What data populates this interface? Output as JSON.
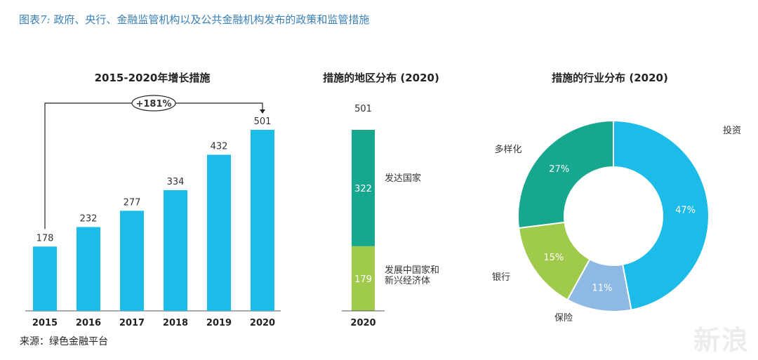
{
  "figure": {
    "title_prefix": "图表",
    "title_number": "7:",
    "title_text": " 政府、央行、金融监管机构以及公共金融机构发布的政策和监管措施",
    "source": "来源：绿色金融平台",
    "watermark": "新浪"
  },
  "colors": {
    "cyan": "#1cbbe8",
    "teal": "#17a68e",
    "green": "#9fca4c",
    "lightblue": "#8db9e2"
  },
  "chart_data": [
    {
      "type": "bar",
      "title": "2015-2020年增长措施",
      "categories": [
        "2015",
        "2016",
        "2017",
        "2018",
        "2019",
        "2020"
      ],
      "values": [
        178,
        232,
        277,
        334,
        432,
        501
      ],
      "ylim": [
        0,
        501
      ],
      "annotation": "+181%"
    },
    {
      "type": "bar",
      "title": "措施的地区分布 (2020)",
      "category": "2020",
      "total": 501,
      "segments": [
        {
          "name": "发展中国家和新兴经济体",
          "label_line1": "发展中国家和",
          "label_line2": "新兴经济体",
          "value": 179,
          "color": "#9fca4c"
        },
        {
          "name": "发达国家",
          "label_line1": "发达国家",
          "label_line2": "",
          "value": 322,
          "color": "#17a68e"
        }
      ]
    },
    {
      "type": "pie",
      "title": "措施的行业分布 (2020)",
      "slices": [
        {
          "name": "投资",
          "value": 47,
          "label": "47%",
          "color": "#1cbbe8"
        },
        {
          "name": "保险",
          "value": 11,
          "label": "11%",
          "color": "#8db9e2"
        },
        {
          "name": "银行",
          "value": 15,
          "label": "15%",
          "color": "#9fca4c"
        },
        {
          "name": "多样化",
          "value": 27,
          "label": "27%",
          "color": "#17a68e"
        }
      ]
    }
  ]
}
